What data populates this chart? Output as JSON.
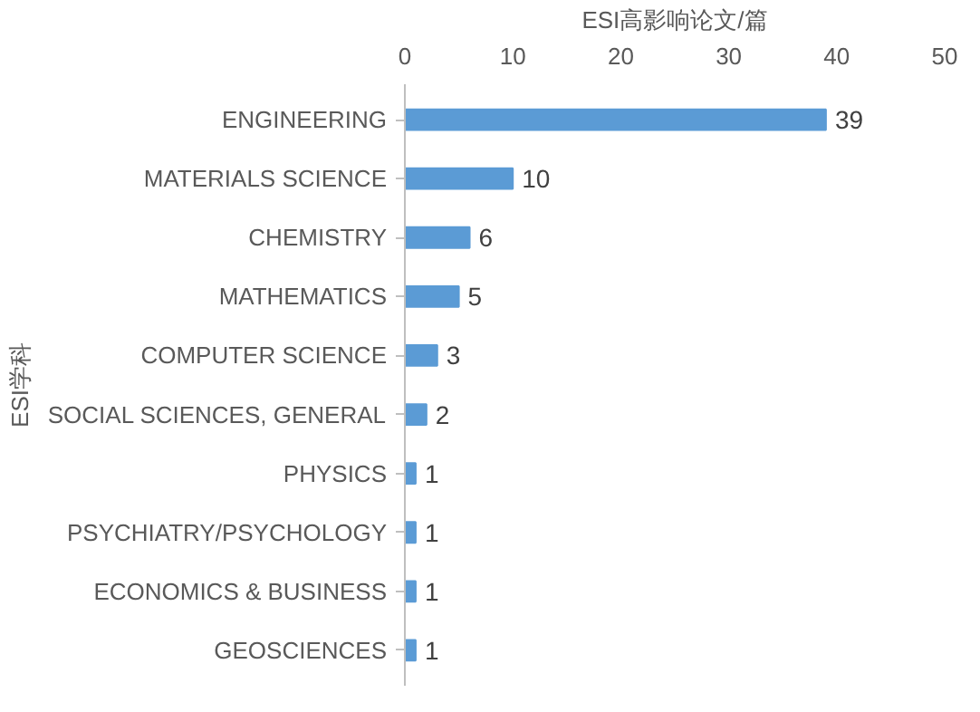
{
  "chart_data": {
    "type": "bar",
    "orientation": "horizontal",
    "xlabel": "ESI高影响论文/篇",
    "ylabel": "ESI学科",
    "categories": [
      "ENGINEERING",
      "MATERIALS SCIENCE",
      "CHEMISTRY",
      "MATHEMATICS",
      "COMPUTER SCIENCE",
      "SOCIAL SCIENCES, GENERAL",
      "PHYSICS",
      "PSYCHIATRY/PSYCHOLOGY",
      "ECONOMICS & BUSINESS",
      "GEOSCIENCES"
    ],
    "values": [
      39,
      10,
      6,
      5,
      3,
      2,
      1,
      1,
      1,
      1
    ],
    "color": "#5b9bd5",
    "xlim": [
      0,
      50
    ],
    "xticks": [
      0,
      10,
      20,
      30,
      40,
      50
    ],
    "data_labels": true,
    "grid": false
  }
}
